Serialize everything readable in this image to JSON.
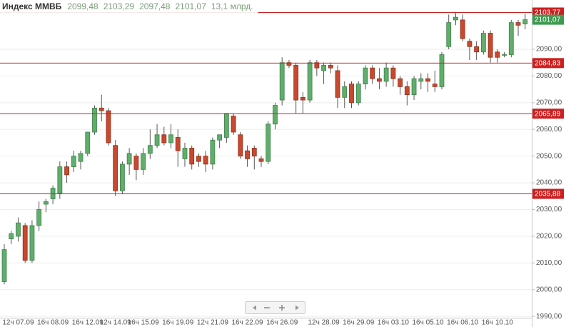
{
  "chart_data": {
    "type": "candlestick",
    "title": "Индекс ММВБ",
    "header_values": [
      "2099,48",
      "2103,29",
      "2097,48",
      "2101,07",
      "13,1 млрд."
    ],
    "categories": [
      null,
      null,
      "12ч 07.09",
      null,
      null,
      null,
      null,
      "16ч 08.09",
      null,
      null,
      null,
      null,
      "16ч 12.09",
      null,
      null,
      null,
      "12ч 14.09",
      null,
      null,
      null,
      "16ч 15.09",
      null,
      null,
      null,
      null,
      "16ч 19.09",
      null,
      null,
      null,
      null,
      "12ч 21.09",
      null,
      null,
      null,
      null,
      "16ч 22.09",
      null,
      null,
      null,
      null,
      "16ч 26.09",
      null,
      null,
      null,
      null,
      null,
      "12ч 28.09",
      null,
      null,
      null,
      null,
      "16ч 29.09",
      null,
      null,
      null,
      null,
      "16ч 03.10",
      null,
      null,
      null,
      null,
      "16ч 05.10",
      null,
      null,
      null,
      null,
      "16ч 06.10",
      null,
      null,
      null,
      null,
      "16ч 10.10",
      null,
      null,
      null,
      null
    ],
    "open": [
      2003,
      2019,
      2020,
      2024,
      2011,
      2024,
      2032,
      2034,
      2036,
      2046,
      2046,
      2048,
      2051,
      2059,
      2068,
      2067,
      2054,
      2037,
      2047,
      2050,
      2045,
      2051,
      2054,
      2058,
      2055,
      2057,
      2049,
      2053,
      2050,
      2050,
      2047,
      2056,
      2057,
      2065,
      2058,
      2052,
      2053,
      2049,
      2048,
      2062,
      2071,
      2085,
      2084,
      2072,
      2071,
      2085,
      2082,
      2084,
      2082,
      2072,
      2077,
      2070,
      2077,
      2083,
      2079,
      2078,
      2083,
      2079,
      2076,
      2073,
      2078,
      2079,
      2077,
      2076,
      2091,
      2101,
      2101,
      2093,
      2091,
      2089,
      2096,
      2089,
      2088,
      2088,
      2100,
      2099.48
    ],
    "high": [
      2017,
      2022,
      2027,
      2025,
      2026,
      2033,
      2034,
      2039,
      2048,
      2048,
      2052,
      2052,
      2059,
      2069,
      2073,
      2068,
      2056,
      2048,
      2053,
      2051,
      2053,
      2060,
      2062,
      2061,
      2062,
      2060,
      2055,
      2054,
      2051,
      2052,
      2057,
      2058,
      2066,
      2066,
      2059,
      2054,
      2054,
      2050,
      2063,
      2070,
      2087,
      2086,
      2085,
      2074,
      2086,
      2086,
      2085,
      2085,
      2084,
      2078,
      2078,
      2078,
      2084,
      2084,
      2083,
      2085,
      2084,
      2080,
      2078,
      2080,
      2081,
      2081,
      2082,
      2089,
      2103,
      2104,
      2103,
      2094,
      2093,
      2097,
      2097,
      2090,
      2089,
      2101,
      2101,
      2103.29
    ],
    "low": [
      2002,
      2017,
      2018,
      2010,
      2010,
      2022,
      2029,
      2032,
      2034,
      2040,
      2044,
      2045,
      2050,
      2058,
      2063,
      2054,
      2035,
      2036,
      2043,
      2041,
      2043,
      2049,
      2053,
      2054,
      2053,
      2046,
      2046,
      2045,
      2046,
      2044,
      2045,
      2053,
      2055,
      2058,
      2049,
      2046,
      2045,
      2046,
      2047,
      2060,
      2069,
      2083,
      2066,
      2066,
      2070,
      2080,
      2077,
      2081,
      2068,
      2068,
      2068,
      2069,
      2075,
      2077,
      2075,
      2076,
      2076,
      2073,
      2069,
      2071,
      2075,
      2074,
      2074,
      2075,
      2090,
      2099,
      2093,
      2086,
      2086,
      2088,
      2085,
      2085,
      2087,
      2087,
      2095,
      2097.48
    ],
    "close": [
      2015,
      2021,
      2025,
      2011,
      2024,
      2030,
      2033,
      2038,
      2046,
      2043,
      2050,
      2051,
      2059,
      2068,
      2067,
      2055,
      2037,
      2047,
      2051,
      2045,
      2051,
      2054,
      2058,
      2055,
      2058,
      2052,
      2053,
      2047,
      2048,
      2047,
      2056,
      2058,
      2066,
      2059,
      2050,
      2049,
      2050,
      2048,
      2062,
      2069,
      2085,
      2084,
      2071,
      2071,
      2085,
      2083,
      2084,
      2083,
      2072,
      2076,
      2070,
      2077,
      2083,
      2079,
      2078,
      2083,
      2079,
      2076,
      2073,
      2079,
      2079,
      2078,
      2076,
      2088,
      2100,
      2102,
      2094,
      2091,
      2089,
      2096,
      2087,
      2087,
      2088,
      2100,
      2099,
      2101.07
    ],
    "up_color": "#5fae6b",
    "down_color": "#c9482e",
    "ylim": [
      1989.5,
      2108.45
    ],
    "yticks": [
      {
        "value": 1990,
        "label": "1990,00"
      },
      {
        "value": 2000,
        "label": "2000,00"
      },
      {
        "value": 2010,
        "label": "2010,00"
      },
      {
        "value": 2020,
        "label": "2020,00"
      },
      {
        "value": 2030,
        "label": "2030,00"
      },
      {
        "value": 2040,
        "label": "2040,00"
      },
      {
        "value": 2050,
        "label": "2050,00"
      },
      {
        "value": 2060,
        "label": "2060,00"
      },
      {
        "value": 2070,
        "label": "2070,00"
      },
      {
        "value": 2080,
        "label": "2080,00"
      },
      {
        "value": 2090,
        "label": "2090,00"
      }
    ],
    "levels": [
      {
        "value": 2103.77,
        "label": "2103,77"
      },
      {
        "value": 2084.83,
        "label": "2084,83"
      },
      {
        "value": 2065.89,
        "label": "2065,89"
      },
      {
        "value": 2035.88,
        "label": "2035,88"
      }
    ],
    "level_color": "#cc1f1f",
    "last_price": {
      "value": 2101.07,
      "label": "2101,07"
    },
    "grid": true
  }
}
